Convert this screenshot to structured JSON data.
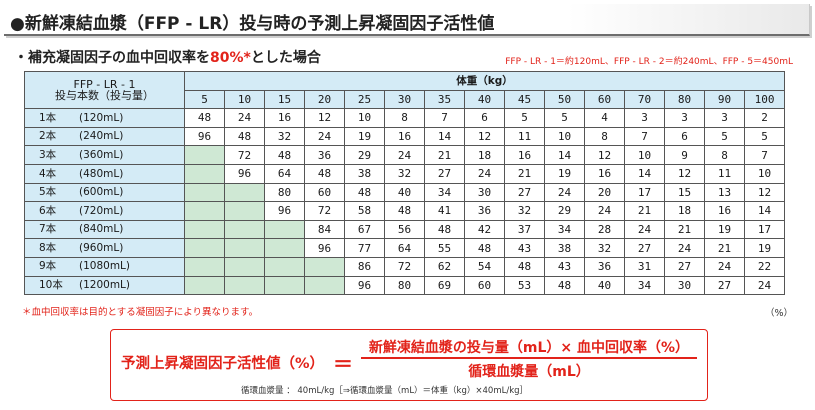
{
  "title": "●新鮮凍結血漿（FFP - LR）投与時の予測上昇凝固因子活性値",
  "subtitle": {
    "prefix": "・補充凝固因子の血中回収率を",
    "highlight": "80%*",
    "suffix": "とした場合"
  },
  "legend_note": "FFP - LR - 1＝約120mL、FFP - LR - 2＝約240mL、FFP - 5＝450mL",
  "table": {
    "corner_line1": "FFP - LR - 1",
    "corner_line2": "投与本数（投与量）",
    "weight_header": "体重（kg）",
    "weights": [
      "5",
      "10",
      "15",
      "20",
      "25",
      "30",
      "35",
      "40",
      "45",
      "50",
      "60",
      "70",
      "80",
      "90",
      "100"
    ],
    "rows": [
      {
        "units": "1本",
        "volume": "(120mL)",
        "values": [
          "48",
          "24",
          "16",
          "12",
          "10",
          "8",
          "7",
          "6",
          "5",
          "5",
          "4",
          "3",
          "3",
          "3",
          "2"
        ]
      },
      {
        "units": "2本",
        "volume": "(240mL)",
        "values": [
          "96",
          "48",
          "32",
          "24",
          "19",
          "16",
          "14",
          "12",
          "11",
          "10",
          "8",
          "7",
          "6",
          "5",
          "5"
        ]
      },
      {
        "units": "3本",
        "volume": "(360mL)",
        "values": [
          "",
          "72",
          "48",
          "36",
          "29",
          "24",
          "21",
          "18",
          "16",
          "14",
          "12",
          "10",
          "9",
          "8",
          "7"
        ]
      },
      {
        "units": "4本",
        "volume": "(480mL)",
        "values": [
          "",
          "96",
          "64",
          "48",
          "38",
          "32",
          "27",
          "24",
          "21",
          "19",
          "16",
          "14",
          "12",
          "11",
          "10"
        ]
      },
      {
        "units": "5本",
        "volume": "(600mL)",
        "values": [
          "",
          "",
          "80",
          "60",
          "48",
          "40",
          "34",
          "30",
          "27",
          "24",
          "20",
          "17",
          "15",
          "13",
          "12"
        ]
      },
      {
        "units": "6本",
        "volume": "(720mL)",
        "values": [
          "",
          "",
          "96",
          "72",
          "58",
          "48",
          "41",
          "36",
          "32",
          "29",
          "24",
          "21",
          "18",
          "16",
          "14"
        ]
      },
      {
        "units": "7本",
        "volume": "(840mL)",
        "values": [
          "",
          "",
          "",
          "84",
          "67",
          "56",
          "48",
          "42",
          "37",
          "34",
          "28",
          "24",
          "21",
          "19",
          "17"
        ]
      },
      {
        "units": "8本",
        "volume": "(960mL)",
        "values": [
          "",
          "",
          "",
          "96",
          "77",
          "64",
          "55",
          "48",
          "43",
          "38",
          "32",
          "27",
          "24",
          "21",
          "19"
        ]
      },
      {
        "units": "9本",
        "volume": "(1080mL)",
        "values": [
          "",
          "",
          "",
          "",
          "86",
          "72",
          "62",
          "54",
          "48",
          "43",
          "36",
          "31",
          "27",
          "24",
          "22"
        ]
      },
      {
        "units": "10本",
        "volume": "(1200mL)",
        "values": [
          "",
          "",
          "",
          "",
          "96",
          "80",
          "69",
          "60",
          "53",
          "48",
          "40",
          "34",
          "30",
          "27",
          "24"
        ]
      }
    ]
  },
  "footnote": "＊血中回収率は目的とする凝固因子により異なります。",
  "percent_note": "（%）",
  "formula": {
    "lhs": "予測上昇凝固因子活性値（%）",
    "eq": "＝",
    "numerator": "新鮮凍結血漿の投与量（mL）× 血中回収率（%）",
    "denominator": "循環血漿量（mL）",
    "sub": "循環血漿量 ： 40mL/kg［⇒循環血漿量（mL）＝体重（kg）×40mL/kg］"
  },
  "colors": {
    "header_bg": "#d4ebf6",
    "empty_cell_bg": "#cfe8d4",
    "accent_red": "#e2231a"
  }
}
